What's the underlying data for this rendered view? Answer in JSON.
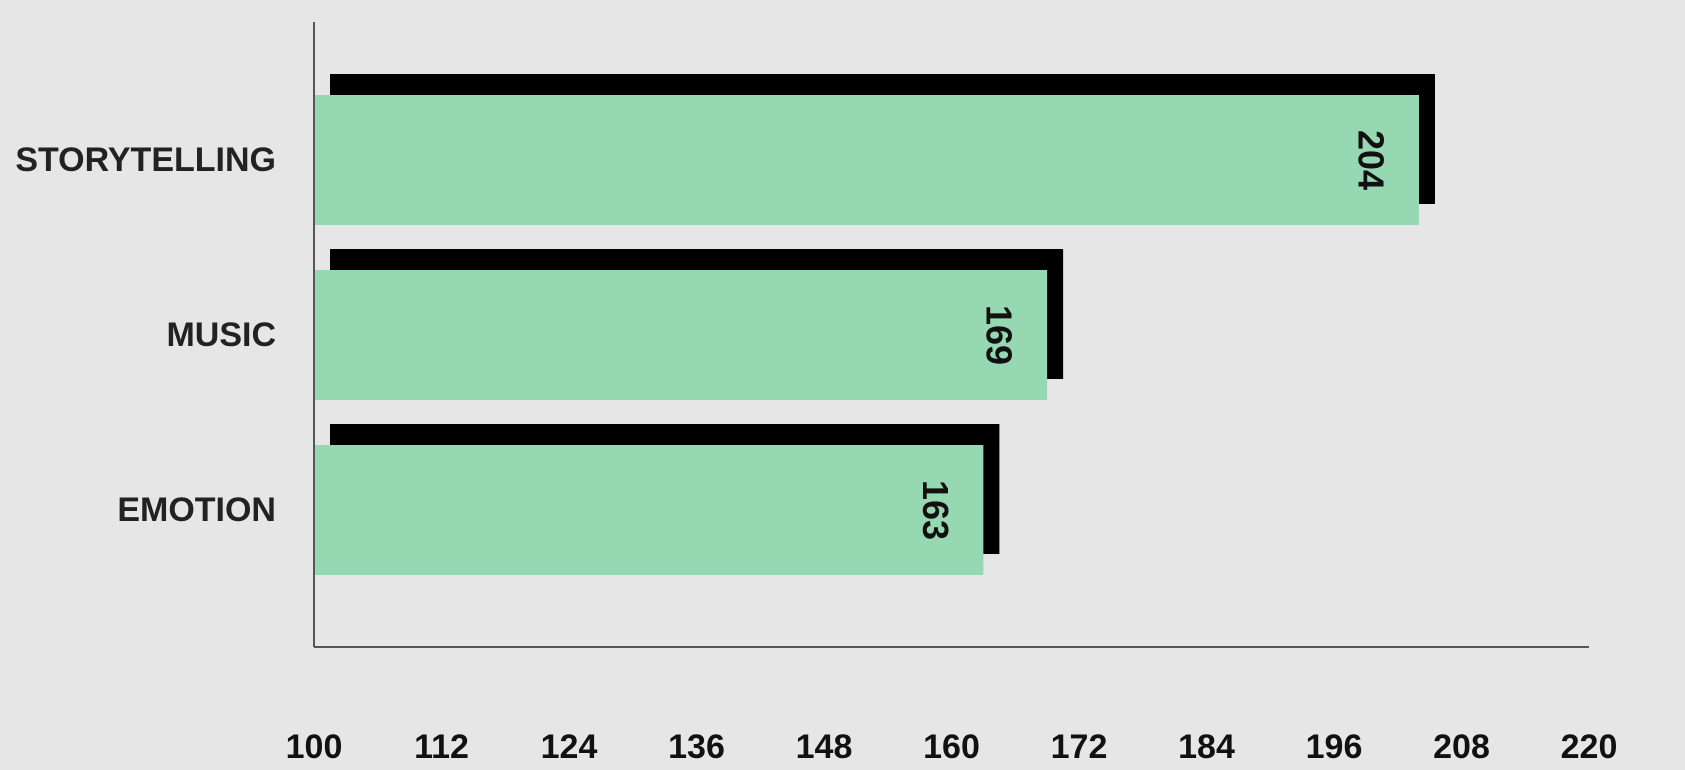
{
  "chart_data": {
    "type": "bar",
    "orientation": "horizontal",
    "categories": [
      "STORYTELLING",
      "MUSIC",
      "EMOTION"
    ],
    "values": [
      204,
      169,
      163
    ],
    "xlim": [
      100,
      220
    ],
    "xticks": [
      "100",
      "112",
      "124",
      "136",
      "148",
      "160",
      "172",
      "184",
      "196",
      "208",
      "220"
    ],
    "title": "",
    "xlabel": "",
    "ylabel": "",
    "grid": false,
    "legend": "none",
    "value_labels": [
      "204",
      "169",
      "163"
    ],
    "colors": {
      "bar": "#96d8b1",
      "shadow": "#000000",
      "axis": "#555555",
      "background": "#e6e6e6"
    }
  }
}
